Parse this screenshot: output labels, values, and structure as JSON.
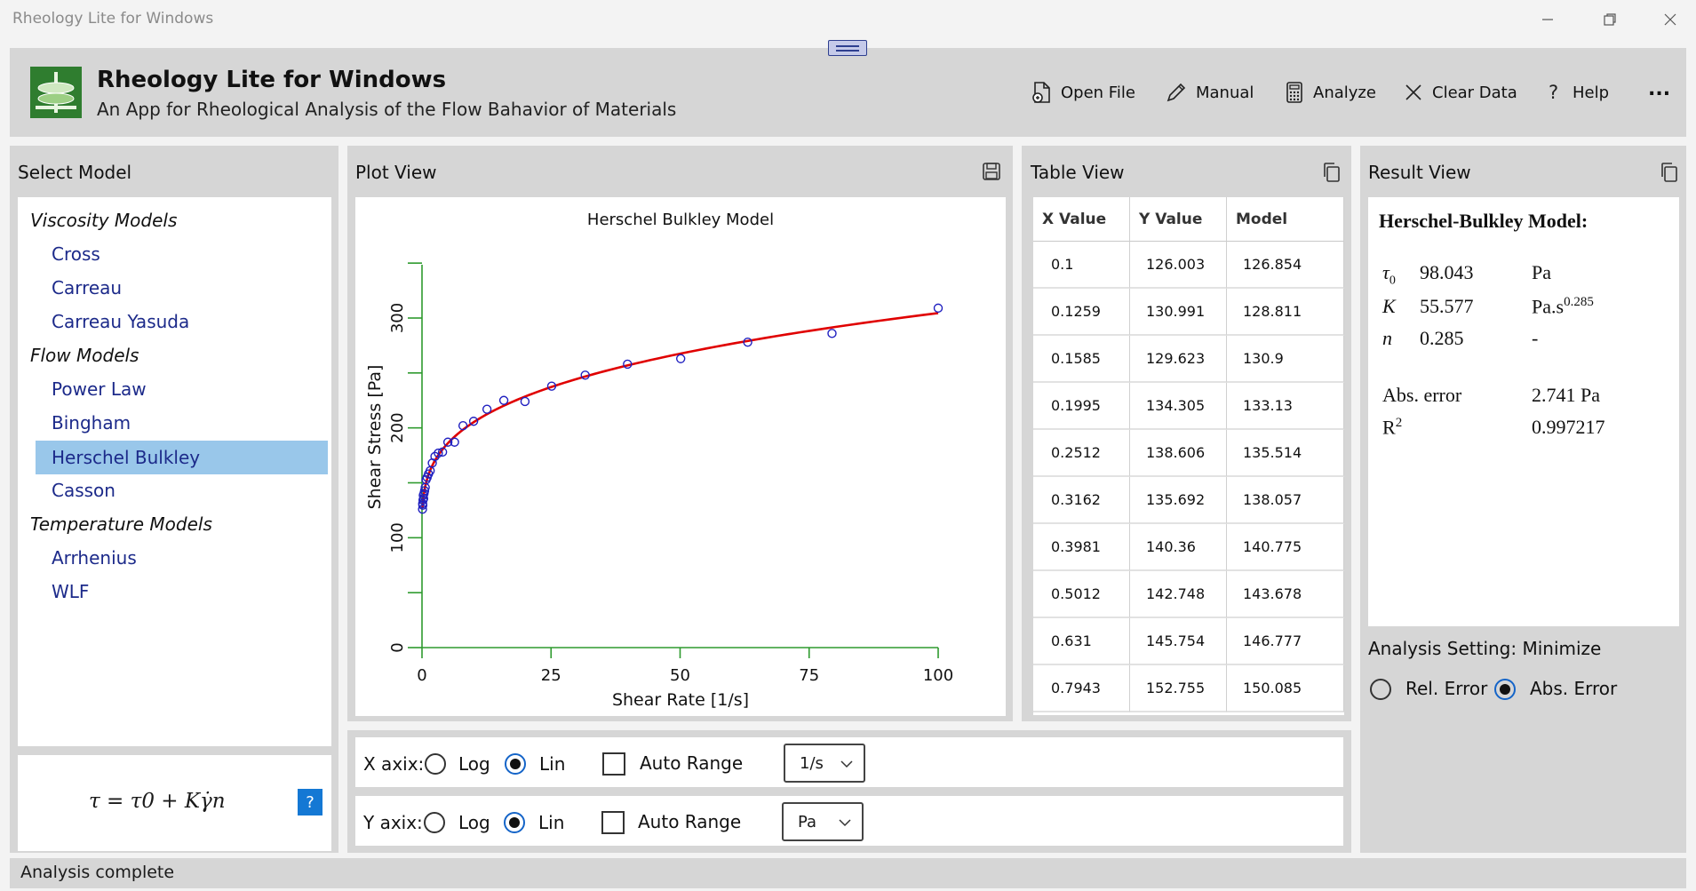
{
  "window": {
    "title": "Rheology Lite for Windows"
  },
  "header": {
    "title": "Rheology Lite for Windows",
    "subtitle": "An App for Rheological Analysis of the Flow Bahavior of Materials",
    "buttons": {
      "open": "Open File",
      "manual": "Manual",
      "analyze": "Analyze",
      "clear": "Clear Data",
      "help": "Help",
      "more": "..."
    }
  },
  "select_model": {
    "title": "Select Model",
    "categories": [
      "Viscosity Models",
      "Flow Models",
      "Temperature Models"
    ],
    "items": [
      "Cross",
      "Carreau",
      "Carreau Yasuda",
      "Power Law",
      "Bingham",
      "Herschel Bulkley",
      "Casson",
      "Arrhenius",
      "WLF"
    ],
    "selected": "Herschel Bulkley",
    "help_label": "?"
  },
  "plot": {
    "panel_title": "Plot View",
    "title": "Herschel Bulkley Model",
    "x_label": "Shear Rate [1/s]",
    "y_label": "Shear Stress [Pa]",
    "x_ticks": [
      "0",
      "25",
      "50",
      "75",
      "100"
    ],
    "y_ticks": [
      "0",
      "100",
      "200",
      "300"
    ]
  },
  "chart_data": {
    "type": "scatter",
    "title": "Herschel Bulkley Model",
    "xlabel": "Shear Rate [1/s]",
    "ylabel": "Shear Stress [Pa]",
    "xlim": [
      0,
      100
    ],
    "ylim": [
      0,
      350
    ],
    "grid": false,
    "series": [
      {
        "type": "scatter",
        "x": [
          0.1,
          0.1259,
          0.1585,
          0.1995,
          0.2512,
          0.3162,
          0.3981,
          0.5012,
          0.631,
          0.7943,
          1.0,
          1.259,
          1.585,
          1.995,
          2.512,
          3.162,
          3.981,
          5.012,
          6.31,
          7.943,
          10.0,
          12.59,
          15.85,
          19.95,
          25.12,
          31.62,
          39.81,
          50.12,
          63.1,
          79.43,
          100
        ],
        "y": [
          126.003,
          130.991,
          129.623,
          134.305,
          138.606,
          135.692,
          140.36,
          142.748,
          145.754,
          152.755,
          155,
          158,
          161,
          168,
          174,
          177,
          178,
          187,
          187,
          202,
          206,
          217,
          225,
          224,
          238,
          248,
          258,
          263,
          278,
          286,
          309
        ]
      },
      {
        "type": "line",
        "model": "herschel-bulkley",
        "tau0": 98.043,
        "K": 55.577,
        "n": 0.285,
        "x_range": [
          0.1,
          100
        ]
      }
    ]
  },
  "table": {
    "title": "Table View",
    "columns": [
      "X Value",
      "Y Value",
      "Model"
    ],
    "rows": [
      [
        "0.1",
        "126.003",
        "126.854"
      ],
      [
        "0.1259",
        "130.991",
        "128.811"
      ],
      [
        "0.1585",
        "129.623",
        "130.9"
      ],
      [
        "0.1995",
        "134.305",
        "133.13"
      ],
      [
        "0.2512",
        "138.606",
        "135.514"
      ],
      [
        "0.3162",
        "135.692",
        "138.057"
      ],
      [
        "0.3981",
        "140.36",
        "140.775"
      ],
      [
        "0.5012",
        "142.748",
        "143.678"
      ],
      [
        "0.631",
        "145.754",
        "146.777"
      ],
      [
        "0.7943",
        "152.755",
        "150.085"
      ]
    ]
  },
  "result": {
    "title": "Result View",
    "heading": "Herschel-Bulkley Model:",
    "params": [
      {
        "sym": "τ0",
        "value": "98.043",
        "unit": "Pa"
      },
      {
        "sym": "K",
        "value": "55.577",
        "unit": "Pa.s0.285"
      },
      {
        "sym": "n",
        "value": "0.285",
        "unit": "-"
      }
    ],
    "abs_error_label": "Abs. error",
    "abs_error_value": "2.741 Pa",
    "r2_label": "R2",
    "r2_value": "0.997217",
    "analysis_setting": "Analysis Setting: Minimize",
    "rel_error": "Rel. Error",
    "abs_error_option": "Abs. Error"
  },
  "axis_controls": {
    "x": {
      "label": "X axix:",
      "log": "Log",
      "lin": "Lin",
      "auto": "Auto Range",
      "unit": "1/s"
    },
    "y": {
      "label": "Y axix:",
      "log": "Log",
      "lin": "Lin",
      "auto": "Auto Range",
      "unit": "Pa"
    }
  },
  "formula": "τ = τ0 + Kγ̇n",
  "status": "Analysis complete",
  "colors": {
    "accent": "#99c7ea",
    "curve": "#e00000",
    "points": "#2020c0",
    "axis": "#2e9a2e",
    "help": "#1478d4"
  }
}
